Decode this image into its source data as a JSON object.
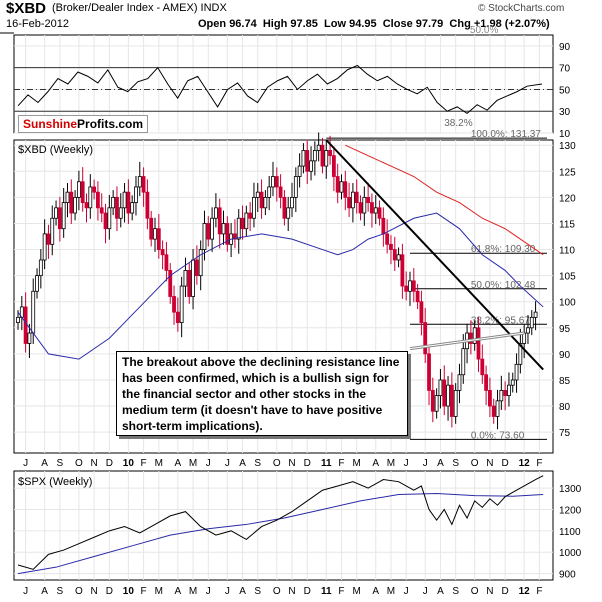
{
  "header": {
    "symbol": "$XBD",
    "description": "(Broker/Dealer Index - AMEX) INDX",
    "date": "16-Feb-2012",
    "open_label": "Open",
    "open": "96.74",
    "high_label": "High",
    "high": "97.85",
    "low_label": "Low",
    "low": "94.95",
    "close_label": "Close",
    "close": "97.79",
    "chg_label": "Chg",
    "chg": "+1.98 (+2.07%)",
    "source": "© StockCharts.com",
    "logo_part1": "Sunshine",
    "logo_part2": "Profits.com"
  },
  "annotation": "The breakout above the declining resistance line has been confirmed, which is a bullish sign for the financial sector and other stocks in the medium term (it doesn't have to have positive short-term implications).",
  "colors": {
    "up_bar": "#000000",
    "down_bar": "#cc0033",
    "ma_fast": "#2a2aa8",
    "ma_slow": "#e02020",
    "grid": "#e6e6e6",
    "frame": "#000000"
  },
  "chart_data": [
    {
      "type": "line",
      "panel": "rsi",
      "title": "",
      "ylim": [
        10,
        100
      ],
      "yticks": [
        10,
        30,
        50,
        70,
        90
      ],
      "ref_lines": [
        30,
        50,
        70
      ],
      "top_label": "50.0%",
      "x": [
        0,
        4,
        8,
        12,
        16,
        20,
        24,
        28,
        32,
        36,
        40,
        44,
        48,
        52,
        56,
        60,
        64,
        68,
        72,
        76,
        80,
        84,
        88,
        92,
        96,
        100,
        104,
        108,
        112,
        116,
        120,
        124,
        128,
        132,
        136,
        140,
        144,
        148,
        152,
        156,
        160,
        164,
        168,
        172,
        176,
        180,
        184,
        188,
        192,
        196,
        200,
        204,
        210
      ],
      "values": [
        35,
        45,
        38,
        48,
        60,
        55,
        66,
        62,
        56,
        68,
        52,
        48,
        57,
        60,
        70,
        55,
        42,
        58,
        62,
        48,
        34,
        50,
        56,
        44,
        38,
        52,
        58,
        62,
        50,
        58,
        64,
        55,
        60,
        68,
        72,
        64,
        58,
        62,
        55,
        50,
        46,
        52,
        38,
        30,
        34,
        28,
        36,
        31,
        40,
        44,
        48,
        53,
        55
      ]
    },
    {
      "type": "bar",
      "panel": "price",
      "title": "$XBD (Weekly)",
      "ylim": [
        71,
        131
      ],
      "yticks": [
        75,
        80,
        85,
        90,
        95,
        100,
        105,
        110,
        115,
        120,
        125,
        130
      ],
      "xticks": [
        {
          "label": "J",
          "x": 2
        },
        {
          "label": "A",
          "x": 7
        },
        {
          "label": "S",
          "x": 11
        },
        {
          "label": "O",
          "x": 16
        },
        {
          "label": "N",
          "x": 20
        },
        {
          "label": "D",
          "x": 24
        },
        {
          "label": "10",
          "x": 29
        },
        {
          "label": "F",
          "x": 33
        },
        {
          "label": "M",
          "x": 37
        },
        {
          "label": "A",
          "x": 42
        },
        {
          "label": "M",
          "x": 46
        },
        {
          "label": "J",
          "x": 50
        },
        {
          "label": "J",
          "x": 55
        },
        {
          "label": "A",
          "x": 59
        },
        {
          "label": "S",
          "x": 63
        },
        {
          "label": "O",
          "x": 68
        },
        {
          "label": "N",
          "x": 72
        },
        {
          "label": "D",
          "x": 76
        },
        {
          "label": "11",
          "x": 81
        },
        {
          "label": "F",
          "x": 85
        },
        {
          "label": "M",
          "x": 89
        },
        {
          "label": "A",
          "x": 94
        },
        {
          "label": "M",
          "x": 98
        },
        {
          "label": "J",
          "x": 102
        },
        {
          "label": "J",
          "x": 107
        },
        {
          "label": "A",
          "x": 111
        },
        {
          "label": "S",
          "x": 115
        },
        {
          "label": "O",
          "x": 120
        },
        {
          "label": "N",
          "x": 124
        },
        {
          "label": "D",
          "x": 128
        },
        {
          "label": "12",
          "x": 133
        },
        {
          "label": "F",
          "x": 137
        }
      ],
      "closes": [
        97,
        99,
        92,
        94,
        102,
        105,
        108,
        113,
        111,
        116,
        118,
        114,
        119,
        121,
        117,
        120,
        123,
        119,
        118,
        122,
        121,
        118,
        117,
        114,
        118,
        120,
        116,
        118,
        121,
        117,
        119,
        122,
        124,
        121,
        116,
        112,
        114,
        110,
        109,
        106,
        101,
        98,
        96,
        103,
        106,
        101,
        108,
        105,
        110,
        115,
        112,
        116,
        118,
        113,
        115,
        111,
        113,
        112,
        116,
        114,
        117,
        116,
        120,
        121,
        118,
        120,
        122,
        124,
        122,
        120,
        116,
        118,
        120,
        124,
        126,
        129,
        125,
        127,
        129,
        130,
        126,
        129,
        128,
        124,
        121,
        123,
        120,
        118,
        121,
        119,
        117,
        120,
        119,
        117,
        118,
        116,
        113,
        111,
        110,
        108,
        109,
        103,
        102,
        104,
        102,
        100,
        96,
        90,
        83,
        79,
        82,
        85,
        80,
        84,
        78,
        83,
        86,
        91,
        94,
        92,
        95,
        89,
        86,
        83,
        80,
        78,
        81,
        83,
        82,
        84,
        85,
        88,
        92,
        94,
        95,
        97,
        98
      ],
      "ma_fast": {
        "x": [
          0,
          8,
          16,
          24,
          32,
          40,
          48,
          56,
          64,
          72,
          80,
          84,
          88,
          92,
          96,
          104,
          110,
          116,
          122,
          128,
          132,
          135,
          138
        ],
        "values": [
          98,
          90,
          89,
          93,
          99,
          105,
          109,
          112,
          113,
          112,
          110,
          109,
          110,
          112,
          113,
          116,
          117,
          114,
          109,
          106,
          103,
          101,
          99
        ]
      },
      "ma_slow": {
        "x": [
          86,
          92,
          98,
          104,
          110,
          116,
          122,
          128,
          134,
          138
        ],
        "values": [
          130,
          128,
          126,
          124,
          121,
          119,
          116,
          114,
          111,
          109
        ]
      },
      "fib_levels": [
        {
          "label": "100.0%: 131.37",
          "value": 131.37
        },
        {
          "label": "61.8%: 109.30",
          "value": 109.3
        },
        {
          "label": "50.0%: 102.48",
          "value": 102.48
        },
        {
          "label": "38.2%: 95.67",
          "value": 95.67
        },
        {
          "label": "0.0%: 73.60",
          "value": 73.6
        }
      ],
      "fib_label_above": "38.2%",
      "resistance_line": {
        "x": [
          81,
          138
        ],
        "values": [
          131,
          87
        ]
      },
      "support_line": {
        "x": [
          103,
          133
        ],
        "values": [
          91,
          94
        ]
      }
    },
    {
      "type": "line",
      "panel": "spx",
      "title": "$SPX (Weekly)",
      "ylim": [
        870,
        1380
      ],
      "yticks": [
        900,
        1000,
        1100,
        1200,
        1300
      ],
      "xticks": [
        {
          "label": "J",
          "x": 2
        },
        {
          "label": "A",
          "x": 7
        },
        {
          "label": "S",
          "x": 11
        },
        {
          "label": "O",
          "x": 16
        },
        {
          "label": "N",
          "x": 20
        },
        {
          "label": "D",
          "x": 24
        },
        {
          "label": "10",
          "x": 29
        },
        {
          "label": "F",
          "x": 33
        },
        {
          "label": "M",
          "x": 37
        },
        {
          "label": "A",
          "x": 42
        },
        {
          "label": "M",
          "x": 46
        },
        {
          "label": "J",
          "x": 50
        },
        {
          "label": "J",
          "x": 55
        },
        {
          "label": "A",
          "x": 59
        },
        {
          "label": "S",
          "x": 63
        },
        {
          "label": "O",
          "x": 68
        },
        {
          "label": "N",
          "x": 72
        },
        {
          "label": "D",
          "x": 76
        },
        {
          "label": "11",
          "x": 81
        },
        {
          "label": "F",
          "x": 85
        },
        {
          "label": "M",
          "x": 89
        },
        {
          "label": "A",
          "x": 94
        },
        {
          "label": "M",
          "x": 98
        },
        {
          "label": "J",
          "x": 102
        },
        {
          "label": "J",
          "x": 107
        },
        {
          "label": "A",
          "x": 111
        },
        {
          "label": "S",
          "x": 115
        },
        {
          "label": "O",
          "x": 120
        },
        {
          "label": "N",
          "x": 124
        },
        {
          "label": "D",
          "x": 128
        },
        {
          "label": "12",
          "x": 133
        },
        {
          "label": "F",
          "x": 137
        }
      ],
      "x": [
        0,
        4,
        8,
        12,
        16,
        20,
        24,
        28,
        32,
        36,
        40,
        44,
        48,
        52,
        56,
        60,
        64,
        68,
        72,
        76,
        80,
        84,
        88,
        92,
        96,
        100,
        104,
        106,
        108,
        110,
        112,
        114,
        116,
        118,
        120,
        122,
        124,
        126,
        128,
        130,
        132,
        134,
        136,
        138
      ],
      "values": [
        940,
        920,
        990,
        1010,
        1040,
        1070,
        1100,
        1120,
        1090,
        1130,
        1170,
        1190,
        1120,
        1080,
        1100,
        1060,
        1120,
        1150,
        1190,
        1240,
        1290,
        1310,
        1330,
        1300,
        1340,
        1330,
        1290,
        1310,
        1200,
        1150,
        1200,
        1130,
        1220,
        1160,
        1240,
        1210,
        1250,
        1220,
        1260,
        1280,
        1300,
        1320,
        1340,
        1358
      ],
      "ma": {
        "x": [
          0,
          10,
          20,
          30,
          40,
          50,
          60,
          70,
          80,
          90,
          100,
          110,
          120,
          130,
          138
        ],
        "values": [
          900,
          930,
          980,
          1030,
          1080,
          1110,
          1130,
          1160,
          1200,
          1240,
          1270,
          1275,
          1265,
          1262,
          1270
        ]
      }
    }
  ]
}
